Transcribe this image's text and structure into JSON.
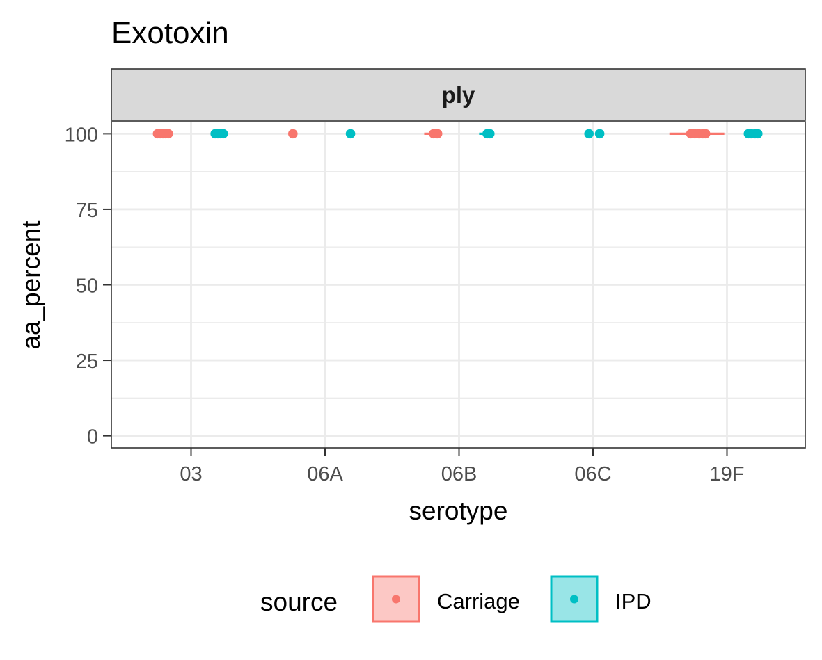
{
  "chart_data": {
    "type": "scatter",
    "title": "Exotoxin",
    "facet_label": "ply",
    "xlabel": "serotype",
    "ylabel": "aa_percent",
    "categories": [
      "03",
      "06A",
      "06B",
      "06C",
      "19F"
    ],
    "ylim": [
      -4,
      104
    ],
    "yticks": [
      0,
      25,
      50,
      75,
      100
    ],
    "grid": true,
    "legend": {
      "title": "source",
      "position": "bottom",
      "entries": [
        "Carriage",
        "IPD"
      ]
    },
    "colors": {
      "Carriage": "#F8766D",
      "IPD": "#00BFC4",
      "grid": "#EBEBEB",
      "strip_bg": "#D9D9D9",
      "panel_border": "#333333"
    },
    "series": [
      {
        "name": "Carriage",
        "points": [
          {
            "x": "03",
            "offset": -0.25,
            "y": 100
          },
          {
            "x": "03",
            "offset": -0.23,
            "y": 100
          },
          {
            "x": "03",
            "offset": -0.21,
            "y": 100
          },
          {
            "x": "03",
            "offset": -0.19,
            "y": 100
          },
          {
            "x": "03",
            "offset": -0.17,
            "y": 100
          },
          {
            "x": "06A",
            "offset": -0.24,
            "y": 100
          },
          {
            "x": "06B",
            "offset": -0.19,
            "y": 100
          },
          {
            "x": "06B",
            "offset": -0.17,
            "y": 100
          },
          {
            "x": "06B",
            "offset": -0.16,
            "y": 100
          },
          {
            "x": "19F",
            "offset": -0.27,
            "y": 100
          },
          {
            "x": "19F",
            "offset": -0.24,
            "y": 100
          },
          {
            "x": "19F",
            "offset": -0.21,
            "y": 100
          },
          {
            "x": "19F",
            "offset": -0.18,
            "y": 100
          },
          {
            "x": "19F",
            "offset": -0.16,
            "y": 100
          }
        ],
        "boxes": [
          {
            "x": "06B",
            "from": -0.26,
            "to": -0.16
          },
          {
            "x": "19F",
            "from": -0.43,
            "to": -0.02
          }
        ]
      },
      {
        "name": "IPD",
        "points": [
          {
            "x": "03",
            "offset": 0.18,
            "y": 100
          },
          {
            "x": "03",
            "offset": 0.2,
            "y": 100
          },
          {
            "x": "03",
            "offset": 0.22,
            "y": 100
          },
          {
            "x": "03",
            "offset": 0.24,
            "y": 100
          },
          {
            "x": "06A",
            "offset": 0.19,
            "y": 100
          },
          {
            "x": "06B",
            "offset": 0.21,
            "y": 100
          },
          {
            "x": "06B",
            "offset": 0.23,
            "y": 100
          },
          {
            "x": "06C",
            "offset": -0.03,
            "y": 100
          },
          {
            "x": "06C",
            "offset": 0.05,
            "y": 100
          },
          {
            "x": "19F",
            "offset": 0.16,
            "y": 100
          },
          {
            "x": "19F",
            "offset": 0.18,
            "y": 100
          },
          {
            "x": "19F",
            "offset": 0.21,
            "y": 100
          },
          {
            "x": "19F",
            "offset": 0.23,
            "y": 100
          }
        ],
        "boxes": [
          {
            "x": "06B",
            "from": 0.15,
            "to": 0.24
          }
        ]
      }
    ]
  }
}
